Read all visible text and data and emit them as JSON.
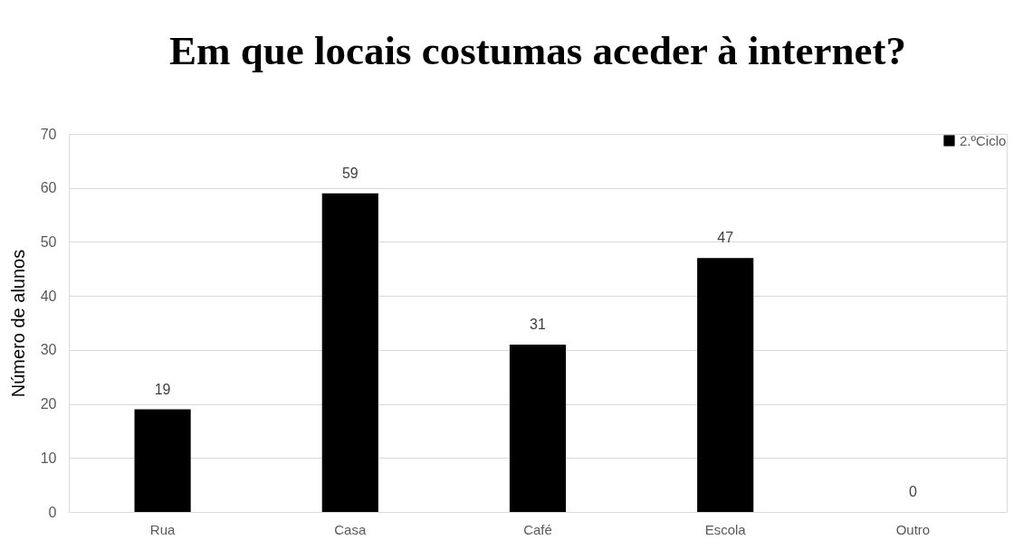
{
  "chart_data": {
    "type": "bar",
    "title": "Em que locais costumas aceder à internet?",
    "ylabel": "Número de alunos",
    "categories": [
      "Rua",
      "Casa",
      "Café",
      "Escola",
      "Outro"
    ],
    "series": [
      {
        "name": "2.ºCiclo",
        "color": "#000000",
        "values": [
          19,
          59,
          31,
          47,
          0
        ]
      }
    ],
    "ylim": [
      0,
      70
    ],
    "yticks": [
      0,
      10,
      20,
      30,
      40,
      50,
      60,
      70
    ],
    "grid": "y",
    "legend": "top right",
    "data_labels": true
  }
}
